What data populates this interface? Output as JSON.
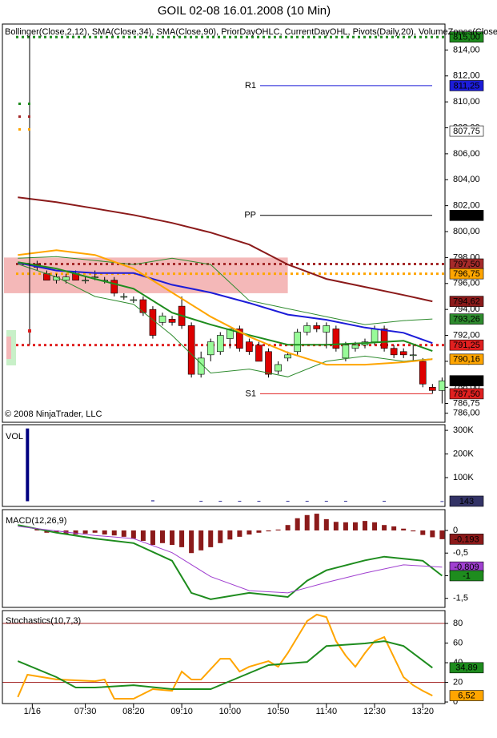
{
  "chart_data": [
    {
      "type": "candlestick",
      "title": "GOIL 02-08  16.01.2008 (10 Min)",
      "indicators_label": "Bollinger(Close,2,12), SMA(Close,34), SMA(Close,90), PriorDayOHLC, CurrentDayOHL, Pivots(Daily,20), VolumeZones(Close,",
      "copyright": "© 2008 NinjaTrader, LLC",
      "xlim": [
        364,
        823
      ],
      "ylim": [
        785.3,
        816
      ],
      "yticks": [
        {
          "value": 786,
          "label": "786,00"
        },
        {
          "value": 788,
          "label": "788,00"
        },
        {
          "value": 790,
          "label": "790,00"
        },
        {
          "value": 792,
          "label": "792,00"
        },
        {
          "value": 794,
          "label": "794,00"
        },
        {
          "value": 796,
          "label": "796,00"
        },
        {
          "value": 798,
          "label": "798,00"
        },
        {
          "value": 800,
          "label": "800,00"
        },
        {
          "value": 802,
          "label": "802,00"
        },
        {
          "value": 804,
          "label": "804,00"
        },
        {
          "value": 806,
          "label": "806,00"
        },
        {
          "value": 808,
          "label": "808,00"
        },
        {
          "value": 810,
          "label": "810,00"
        },
        {
          "value": 812,
          "label": "812,00"
        },
        {
          "value": 814,
          "label": "814,00"
        }
      ],
      "x": [
        400,
        410,
        420,
        430,
        440,
        450,
        460,
        470,
        480,
        490,
        500,
        510,
        520,
        530,
        540,
        550,
        560,
        570,
        580,
        590,
        600,
        610,
        620,
        630,
        640,
        650,
        660,
        670,
        680,
        690,
        700,
        710,
        720,
        730,
        740,
        750,
        760,
        770,
        780,
        790,
        800,
        810,
        820
      ],
      "open": [
        797.5,
        796.75,
        796.25,
        796.25,
        796.75,
        796.25,
        796.5,
        796.25,
        796.25,
        795.0,
        794.75,
        794.75,
        794.0,
        793.0,
        793.25,
        794.25,
        792.75,
        789.0,
        790.5,
        790.75,
        791.75,
        792.5,
        791.5,
        791.25,
        790.75,
        789.25,
        790.25,
        790.75,
        792.25,
        792.75,
        792.25,
        792.5,
        790.25,
        791.0,
        791.25,
        791.5,
        792.5,
        791.0,
        790.75,
        790.5,
        790.0,
        788.0,
        787.75
      ],
      "high": [
        797.75,
        797.0,
        796.75,
        796.75,
        797.0,
        796.5,
        797.0,
        796.5,
        796.5,
        795.25,
        795.0,
        795.0,
        794.25,
        793.75,
        793.5,
        795.0,
        793.0,
        790.75,
        791.75,
        792.25,
        792.5,
        792.75,
        791.75,
        791.5,
        791.0,
        790.0,
        790.75,
        792.5,
        793.0,
        793.0,
        793.0,
        792.75,
        791.5,
        791.5,
        791.75,
        792.75,
        792.75,
        791.25,
        791.0,
        791.25,
        790.25,
        788.25,
        788.75
      ],
      "low": [
        797.0,
        796.25,
        796.0,
        796.0,
        796.25,
        796.0,
        796.25,
        796.0,
        795.0,
        794.75,
        794.5,
        793.5,
        791.75,
        792.75,
        792.75,
        792.5,
        788.75,
        788.75,
        790.0,
        790.5,
        791.0,
        790.75,
        790.5,
        790.0,
        788.75,
        789.0,
        790.0,
        790.5,
        792.0,
        792.25,
        791.0,
        790.75,
        790.0,
        790.75,
        791.0,
        791.25,
        790.75,
        790.25,
        790.25,
        790.0,
        788.0,
        787.5,
        786.75
      ],
      "close": [
        797.25,
        796.25,
        796.5,
        796.5,
        796.25,
        796.25,
        796.5,
        796.25,
        795.25,
        795.0,
        794.75,
        793.75,
        792.0,
        793.5,
        793.0,
        792.75,
        789.0,
        790.25,
        791.5,
        792.0,
        792.5,
        791.0,
        790.75,
        790.0,
        789.0,
        789.75,
        790.5,
        792.25,
        792.75,
        792.5,
        792.75,
        791.0,
        791.25,
        791.25,
        791.5,
        792.5,
        791.0,
        790.5,
        790.5,
        790.5,
        788.25,
        787.75,
        788.5
      ],
      "up_color": "#98fb98",
      "down_color": "#dd0000",
      "zone": [
        795.25,
        798.0
      ],
      "zone_color": "#f4b8b8",
      "series": [
        {
          "color": "#8b1a1a",
          "width": 2,
          "x": [
            380,
            420,
            460,
            500,
            540,
            580,
            620,
            660,
            700,
            740,
            780,
            810
          ],
          "values": [
            802.64,
            802.27,
            801.78,
            801.28,
            800.67,
            799.93,
            799.0,
            797.46,
            796.35,
            795.73,
            795.11,
            794.62
          ]
        },
        {
          "color": "#1c1cd8",
          "width": 2,
          "x": [
            380,
            420,
            460,
            500,
            540,
            580,
            620,
            660,
            700,
            740,
            780,
            810
          ],
          "values": [
            797.6,
            797.0,
            796.8,
            796.8,
            795.9,
            795.3,
            794.5,
            793.6,
            793.2,
            792.6,
            792.2,
            791.4
          ]
        },
        {
          "color": "#2e8b2e",
          "width": 1,
          "x": [
            380,
            420,
            460,
            500,
            540,
            580,
            620,
            660,
            700,
            740,
            780,
            810
          ],
          "values": [
            797.95,
            798.07,
            797.77,
            797.46,
            797.95,
            797.46,
            794.68,
            794.06,
            793.44,
            792.83,
            793.14,
            793.26
          ]
        },
        {
          "color": "#2e8b2e",
          "width": 1,
          "x": [
            380,
            420,
            460,
            500,
            540,
            580,
            620,
            660,
            700,
            740,
            780,
            810
          ],
          "values": [
            797.5,
            796.5,
            795.0,
            794.4,
            792.0,
            789.1,
            789.4,
            788.8,
            790.0,
            790.4,
            790.0,
            790.2
          ]
        },
        {
          "color": "#1e8c1e",
          "width": 2,
          "x": [
            380,
            420,
            460,
            500,
            540,
            580,
            620,
            660,
            700,
            740,
            780,
            810
          ],
          "values": [
            797.64,
            797.15,
            796.35,
            795.6,
            793.75,
            792.83,
            792.02,
            791.28,
            791.28,
            791.41,
            791.59,
            790.79
          ]
        },
        {
          "color": "#ffa500",
          "width": 2,
          "x": [
            380,
            420,
            460,
            500,
            540,
            580,
            620,
            660,
            700,
            740,
            780,
            810
          ],
          "values": [
            798.2,
            798.57,
            798.2,
            797.15,
            795.3,
            793.44,
            791.9,
            790.67,
            789.74,
            789.74,
            789.93,
            790.16
          ]
        }
      ],
      "levels": [
        {
          "value": 815,
          "color": "#1e8c1e"
        },
        {
          "value": 797.5,
          "color": "#a52a2a"
        },
        {
          "value": 796.75,
          "color": "#ffa500"
        },
        {
          "value": 791.25,
          "color": "#e02020"
        }
      ],
      "pivots": [
        {
          "label": "R1",
          "value": 811.25,
          "color": "#1c1cd8"
        },
        {
          "label": "PP",
          "value": 801.25,
          "color": "#000000"
        },
        {
          "label": "S1",
          "value": 787.5,
          "color": "#e02020"
        }
      ],
      "price_labels": [
        {
          "value": 815,
          "label": "815,00",
          "color": "#1e8c1e"
        },
        {
          "value": 811.25,
          "label": "811,25",
          "color": "#1c1cd8"
        },
        {
          "value": 807.75,
          "label": "807,75",
          "color": "#ffffff"
        },
        {
          "value": 801.25,
          "label": "801,25",
          "color": "#000000"
        },
        {
          "value": 797.5,
          "label": "797,50",
          "color": "#a52a2a"
        },
        {
          "value": 796.75,
          "label": "796,75",
          "color": "#ffa500"
        },
        {
          "value": 794.62,
          "label": "794,62",
          "color": "#8b1a1a"
        },
        {
          "value": 793.26,
          "label": "793,26",
          "color": "#2e8b2e"
        },
        {
          "value": 791.25,
          "label": "791,25",
          "color": "#e02020"
        },
        {
          "value": 790.16,
          "label": "790,16",
          "color": "#ffa500"
        },
        {
          "value": 788.5,
          "label": "788,50",
          "color": "#000000"
        },
        {
          "value": 787.5,
          "label": "787,50",
          "color": "#e02020"
        }
      ],
      "low_label": {
        "value": 786.75,
        "label": "786,75"
      }
    },
    {
      "type": "bar",
      "label": "VOL",
      "xlim": [
        364,
        823
      ],
      "ylim": [
        -22000,
        324000
      ],
      "yticks": [
        {
          "value": 100000,
          "label": "100K"
        },
        {
          "value": 200000,
          "label": "200K"
        },
        {
          "value": 300000,
          "label": "300K"
        }
      ],
      "x": [
        390,
        520,
        570,
        590,
        610,
        630,
        660,
        680,
        700,
        720,
        760,
        820
      ],
      "values": [
        308000,
        3500,
        1200,
        1200,
        1500,
        1500,
        1200,
        1500,
        1500,
        1200,
        1200,
        143
      ],
      "color": "#000080",
      "price_labels": [
        {
          "value": 143,
          "label": "143",
          "color": "#333366"
        }
      ]
    },
    {
      "type": "macd",
      "label": "MACD(12,26,9)",
      "xlim": [
        364,
        823
      ],
      "ylim": [
        -1.7,
        0.46
      ],
      "yticks": [
        0,
        {
          "value": -0.5,
          "label": "-0,5"
        },
        -1,
        {
          "value": -1.5,
          "label": "-1,5"
        }
      ],
      "x": [
        400,
        410,
        420,
        430,
        440,
        450,
        460,
        470,
        480,
        490,
        500,
        510,
        520,
        530,
        540,
        550,
        560,
        570,
        580,
        590,
        600,
        610,
        620,
        630,
        640,
        650,
        660,
        670,
        680,
        690,
        700,
        710,
        720,
        730,
        740,
        750,
        760,
        770,
        780,
        790,
        800,
        810,
        820
      ],
      "values": [
        0.03,
        -0.05,
        -0.05,
        -0.07,
        -0.09,
        -0.07,
        -0.05,
        -0.09,
        -0.11,
        -0.14,
        -0.18,
        -0.23,
        -0.32,
        -0.28,
        -0.32,
        -0.37,
        -0.5,
        -0.44,
        -0.37,
        -0.28,
        -0.2,
        -0.14,
        -0.09,
        -0.05,
        -0.02,
        0.02,
        0.12,
        0.27,
        0.34,
        0.37,
        0.25,
        0.19,
        0.18,
        0.18,
        0.21,
        0.18,
        0.12,
        0.09,
        0.04,
        -0.02,
        -0.1,
        -0.15,
        -0.193
      ],
      "color": "#8b1a1a",
      "series": [
        {
          "color": "#1e8c1e",
          "width": 2,
          "x": [
            380,
            420,
            460,
            500,
            540,
            560,
            580,
            620,
            660,
            680,
            700,
            740,
            760,
            800,
            820
          ],
          "values": [
            0.12,
            -0.05,
            -0.18,
            -0.28,
            -0.67,
            -1.38,
            -1.52,
            -1.38,
            -1.47,
            -1.11,
            -0.88,
            -0.66,
            -0.58,
            -0.67,
            -1
          ]
        },
        {
          "color": "#a040d0",
          "width": 1,
          "x": [
            380,
            460,
            500,
            540,
            580,
            620,
            660,
            700,
            740,
            780,
            820
          ],
          "values": [
            0.09,
            -0.11,
            -0.18,
            -0.49,
            -1.02,
            -1.33,
            -1.38,
            -1.15,
            -0.94,
            -0.76,
            -0.809
          ]
        }
      ],
      "price_labels": [
        {
          "value": -0.193,
          "label": "-0,193",
          "color": "#8b1a1a"
        },
        {
          "value": -0.809,
          "label": "-0,809",
          "color": "#a040d0"
        },
        {
          "value": -1,
          "label": "-1",
          "color": "#1e8c1e"
        }
      ]
    },
    {
      "type": "line",
      "label": "Stochastics(10,7,3)",
      "xlim": [
        364,
        823
      ],
      "ylim": [
        -1.6,
        93.1
      ],
      "yticks": [
        0,
        20,
        40,
        60,
        80
      ],
      "xticks": [
        {
          "value": 395,
          "label": "1/16"
        },
        {
          "value": 450,
          "label": "07:30"
        },
        {
          "value": 500,
          "label": "08:20"
        },
        {
          "value": 550,
          "label": "09:10"
        },
        {
          "value": 600,
          "label": "10:00"
        },
        {
          "value": 650,
          "label": "10:50"
        },
        {
          "value": 700,
          "label": "11:40"
        },
        {
          "value": 750,
          "label": "12:30"
        },
        {
          "value": 800,
          "label": "13:20"
        }
      ],
      "levels": [
        {
          "value": 80,
          "color": "#a52a2a"
        },
        {
          "value": 20,
          "color": "#a52a2a"
        }
      ],
      "series": [
        {
          "color": "#ffa500",
          "width": 2,
          "x": [
            380,
            390,
            420,
            460,
            470,
            480,
            500,
            520,
            540,
            550,
            560,
            570,
            590,
            600,
            610,
            620,
            640,
            650,
            660,
            680,
            690,
            700,
            710,
            720,
            730,
            740,
            750,
            760,
            770,
            780,
            790,
            800,
            810
          ],
          "values": [
            5,
            27.8,
            23,
            21.2,
            22.9,
            3.3,
            3.3,
            13.1,
            11.4,
            31,
            22.9,
            22.9,
            44,
            44,
            31,
            35.9,
            41.6,
            35.9,
            49.8,
            82.4,
            89,
            86.5,
            62,
            47.3,
            35.9,
            49.8,
            62,
            66.1,
            45.7,
            25.3,
            17.1,
            11.4,
            6.52
          ]
        },
        {
          "color": "#1e8c1e",
          "width": 2,
          "x": [
            380,
            420,
            440,
            460,
            500,
            540,
            580,
            610,
            640,
            680,
            700,
            740,
            760,
            780,
            810
          ],
          "values": [
            41.6,
            25.3,
            14.7,
            14.7,
            17.1,
            13.1,
            13.1,
            25.3,
            37.6,
            40.8,
            57,
            59.6,
            62,
            57,
            34.89
          ]
        }
      ],
      "price_labels": [
        {
          "value": 34.89,
          "label": "34,89",
          "color": "#1e8c1e"
        },
        {
          "value": 6.52,
          "label": "6,52",
          "color": "#ffa500"
        }
      ]
    }
  ]
}
